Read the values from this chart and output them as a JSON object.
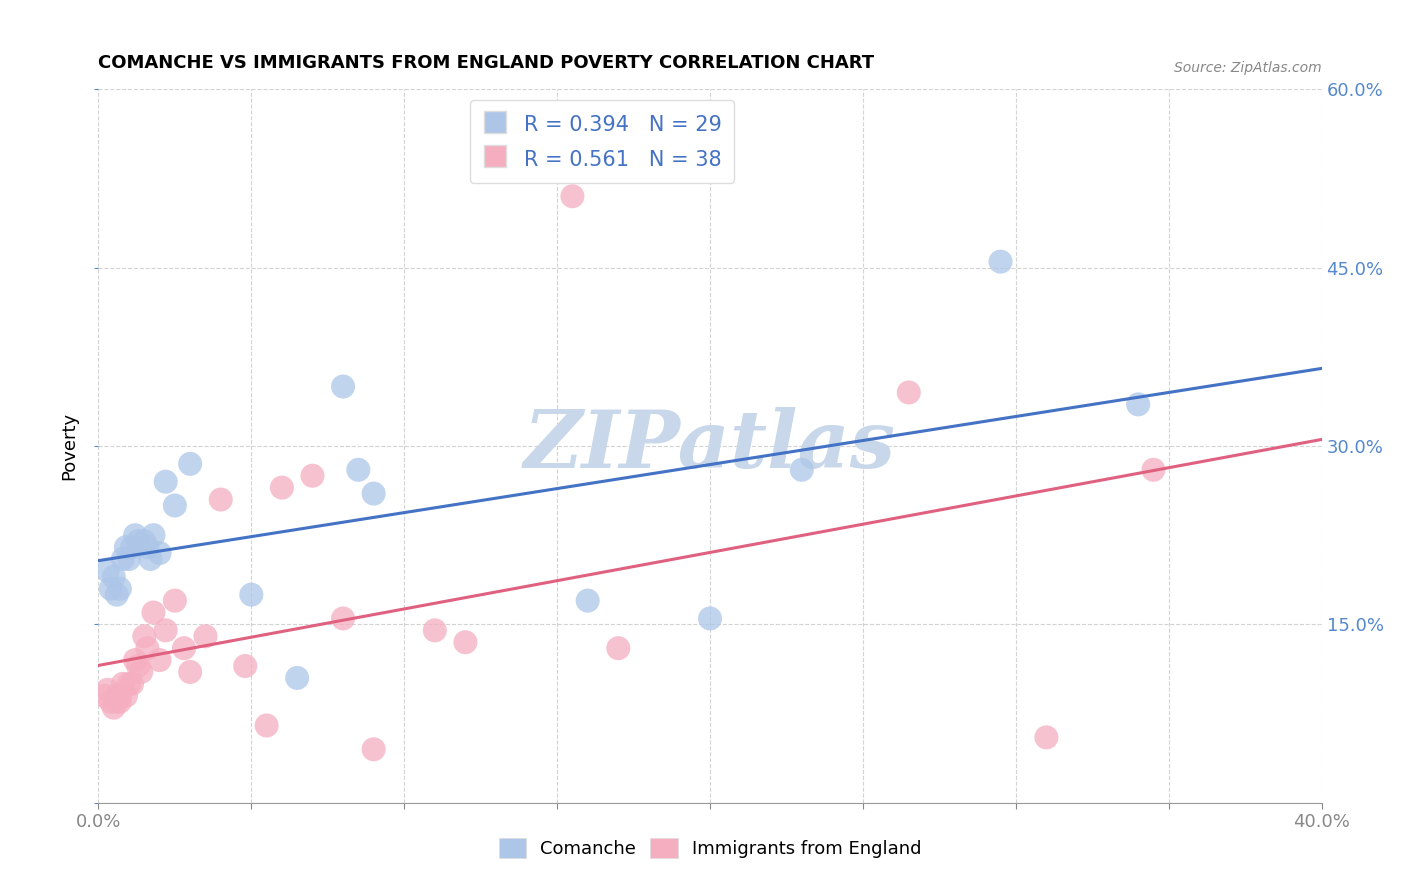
{
  "title": "COMANCHE VS IMMIGRANTS FROM ENGLAND POVERTY CORRELATION CHART",
  "source": "Source: ZipAtlas.com",
  "ylabel": "Poverty",
  "xlim": [
    0.0,
    0.4
  ],
  "ylim": [
    0.0,
    0.6
  ],
  "xticks": [
    0.0,
    0.05,
    0.1,
    0.15,
    0.2,
    0.25,
    0.3,
    0.35,
    0.4
  ],
  "yticks": [
    0.0,
    0.15,
    0.3,
    0.45,
    0.6
  ],
  "xtick_labels_left": "0.0%",
  "xtick_labels_right": "40.0%",
  "right_ytick_labels": [
    "",
    "15.0%",
    "30.0%",
    "45.0%",
    "60.0%"
  ],
  "comanche_R": 0.394,
  "comanche_N": 29,
  "england_R": 0.561,
  "england_N": 38,
  "comanche_color": "#adc6e8",
  "england_color": "#f5aec0",
  "comanche_line_color": "#4472c4",
  "england_line_color": "#e06080",
  "watermark": "ZIPatlas",
  "watermark_color": "#c8d8ea",
  "comanche_x": [
    0.003,
    0.004,
    0.005,
    0.006,
    0.007,
    0.008,
    0.009,
    0.01,
    0.011,
    0.012,
    0.013,
    0.015,
    0.016,
    0.017,
    0.018,
    0.02,
    0.022,
    0.025,
    0.03,
    0.05,
    0.065,
    0.08,
    0.085,
    0.09,
    0.16,
    0.2,
    0.23,
    0.295,
    0.34
  ],
  "comanche_y": [
    0.195,
    0.18,
    0.19,
    0.175,
    0.18,
    0.205,
    0.215,
    0.205,
    0.215,
    0.225,
    0.22,
    0.22,
    0.215,
    0.205,
    0.225,
    0.21,
    0.27,
    0.25,
    0.285,
    0.175,
    0.105,
    0.35,
    0.28,
    0.26,
    0.17,
    0.155,
    0.28,
    0.455,
    0.335
  ],
  "england_x": [
    0.002,
    0.003,
    0.004,
    0.005,
    0.006,
    0.006,
    0.007,
    0.007,
    0.008,
    0.009,
    0.01,
    0.011,
    0.012,
    0.013,
    0.014,
    0.015,
    0.016,
    0.018,
    0.02,
    0.022,
    0.025,
    0.028,
    0.03,
    0.035,
    0.04,
    0.048,
    0.055,
    0.06,
    0.07,
    0.08,
    0.09,
    0.11,
    0.12,
    0.155,
    0.17,
    0.265,
    0.31,
    0.345
  ],
  "england_y": [
    0.09,
    0.095,
    0.085,
    0.08,
    0.09,
    0.085,
    0.085,
    0.09,
    0.1,
    0.09,
    0.1,
    0.1,
    0.12,
    0.115,
    0.11,
    0.14,
    0.13,
    0.16,
    0.12,
    0.145,
    0.17,
    0.13,
    0.11,
    0.14,
    0.255,
    0.115,
    0.065,
    0.265,
    0.275,
    0.155,
    0.045,
    0.145,
    0.135,
    0.51,
    0.13,
    0.345,
    0.055,
    0.28
  ],
  "background_color": "#ffffff",
  "grid_color": "#c8c8c8"
}
